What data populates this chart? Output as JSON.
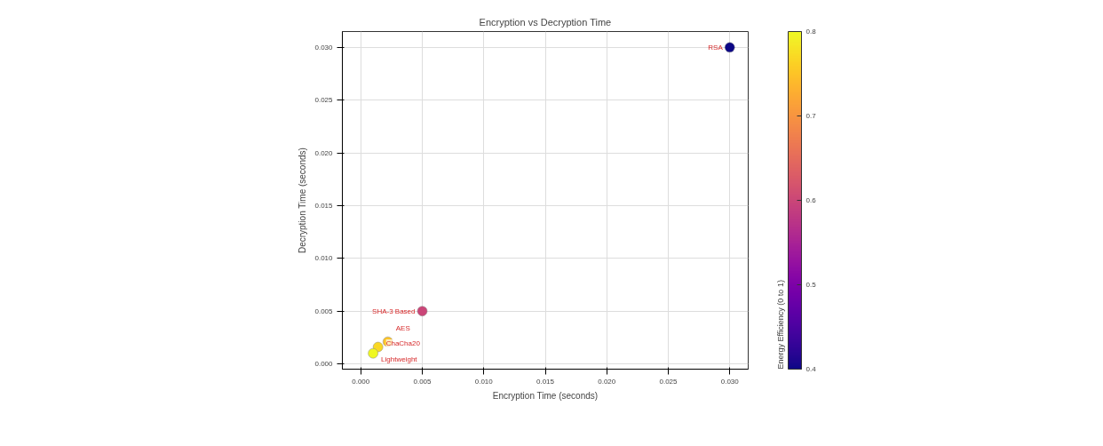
{
  "chart_data": {
    "type": "scatter",
    "title": "Encryption vs Decryption Time",
    "xlabel": "Encryption Time (seconds)",
    "ylabel": "Decryption Time (seconds)",
    "clabel": "Energy Efficiency (0 to 1)",
    "series": [
      {
        "x": [
          0.03,
          0.005,
          0.0022,
          0.0014,
          0.001
        ],
        "values": [
          0.03,
          0.005,
          0.0021,
          0.0016,
          0.001
        ],
        "cvalues": [
          0.4,
          0.6,
          0.75,
          0.77,
          0.8
        ]
      }
    ],
    "annotations": [
      {
        "text": "RSA",
        "x": 0.03,
        "y": 0.03
      },
      {
        "text": "SHA-3 Based",
        "x": 0.005,
        "y": 0.005
      },
      {
        "text": "AES",
        "x": 0.0022,
        "y": 0.0021
      },
      {
        "text": "ChaCha20",
        "x": 0.0014,
        "y": 0.0016
      },
      {
        "text": "Lightweight",
        "x": 0.001,
        "y": 0.001
      }
    ],
    "xlim": [
      -0.0015,
      0.0315
    ],
    "ylim": [
      -0.0005,
      0.0315
    ],
    "xticks": [
      {
        "value": 0,
        "label": "0.000"
      },
      0.005,
      {
        "value": 0.01,
        "label": "0.010"
      },
      0.015,
      {
        "value": 0.02,
        "label": "0.020"
      },
      0.025,
      {
        "value": 0.03,
        "label": "0.030"
      }
    ],
    "yticks": [
      {
        "value": 0,
        "label": "0.000"
      },
      0.005,
      {
        "value": 0.01,
        "label": "0.010"
      },
      0.015,
      {
        "value": 0.02,
        "label": "0.020"
      },
      0.025,
      {
        "value": 0.03,
        "label": "0.030"
      }
    ],
    "clim": [
      0.4,
      0.8
    ],
    "cticks": [
      0.4,
      0.5,
      0.6,
      0.7,
      0.8
    ],
    "grid": true,
    "marker": "circle"
  }
}
